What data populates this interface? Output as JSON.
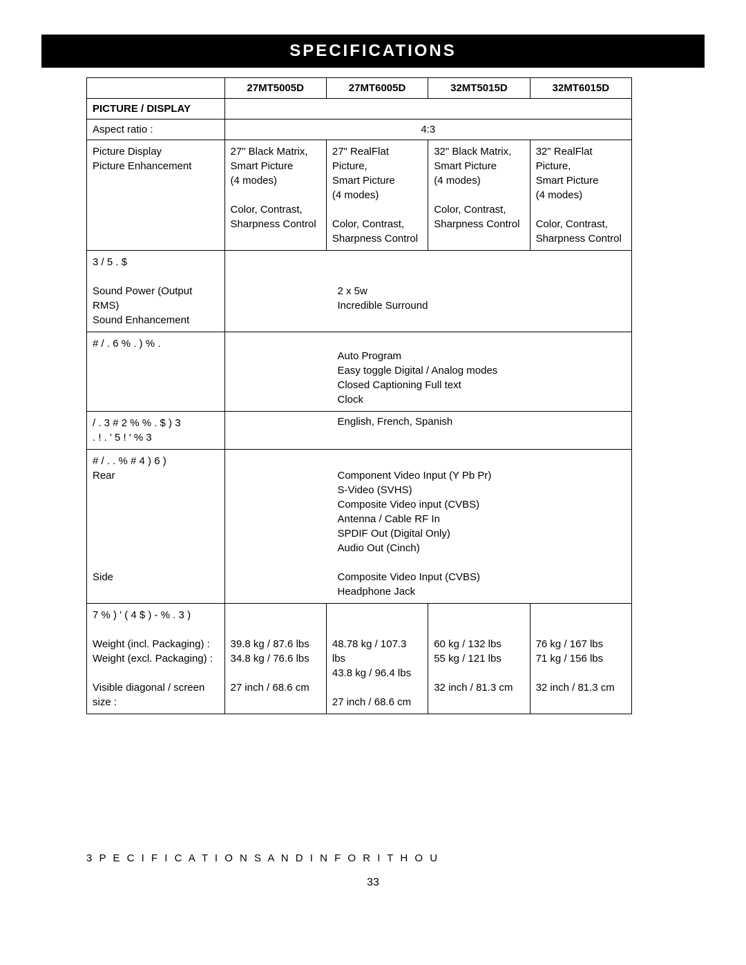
{
  "title": "SPECIFICATIONS",
  "headers": {
    "blank": "",
    "c1": "27MT5005D",
    "c2": "27MT6005D",
    "c3": "32MT5015D",
    "c4": "32MT6015D"
  },
  "picture": {
    "section": "PICTURE / DISPLAY",
    "aspect_label": "Aspect ratio :",
    "aspect_value": "4:3",
    "picture_label": "Picture Display\nPicture Enhancement",
    "c1": "27\" Black Matrix,\nSmart Picture\n(4 modes)\n\nColor, Contrast,\nSharpness Control",
    "c2": "27\" RealFlat Picture,\nSmart Picture\n(4 modes)\n\nColor, Contrast,\nSharpness Control",
    "c3": "32\" Black Matrix,\nSmart Picture\n(4 modes)\n\nColor, Contrast,\nSharpness Control",
    "c4": "32\" RealFlat Picture,\nSmart Picture\n(4 modes)\n\nColor, Contrast,\nSharpness Control"
  },
  "sound": {
    "section": "3 / 5 . $",
    "label": "Sound Power (Output RMS)\nSound Enhancement",
    "value": "2 x 5w\nIncredible Surround"
  },
  "convenience": {
    "section": "# / . 6 % . ) % .",
    "value": "Auto Program\nEasy toggle Digital / Analog modes\nClosed Captioning Full text\nClock"
  },
  "osd": {
    "section": "/ .   3 # 2 % % .   $ ) 3\n. ! . ' 5 ! ' % 3",
    "value": "English, French, Spanish"
  },
  "connections": {
    "section": "# / . . % # 4 ) 6 )",
    "rear_label": "Rear",
    "rear_value": "Component Video Input (Y Pb Pr)\nS-Video (SVHS)\nComposite Video input (CVBS)\nAntenna / Cable RF In\nSPDIF Out (Digital Only)\nAudio Out (Cinch)",
    "side_label": "Side",
    "side_value": "Composite Video Input (CVBS)\nHeadphone Jack"
  },
  "weight": {
    "section": "7 % ) ' ( 4       $ ) - % . 3 )",
    "labels": "Weight (incl. Packaging) :\nWeight (excl. Packaging) :\n\nVisible diagonal / screen size :",
    "c1": "39.8 kg / 87.6 lbs\n34.8 kg / 76.6 lbs\n\n27 inch / 68.6 cm",
    "c2": "48.78 kg / 107.3 lbs\n43.8 kg / 96.4 lbs\n\n27 inch / 68.6 cm",
    "c3": "60 kg / 132 lbs\n55 kg / 121 lbs\n\n32 inch / 81.3 cm",
    "c4": "76 kg / 167 lbs\n71 kg / 156 lbs\n\n32 inch / 81.3 cm"
  },
  "footer": "3 P E C I F I C A T I O N S   A N D   I N F O R I T H O U",
  "page_number": "33"
}
